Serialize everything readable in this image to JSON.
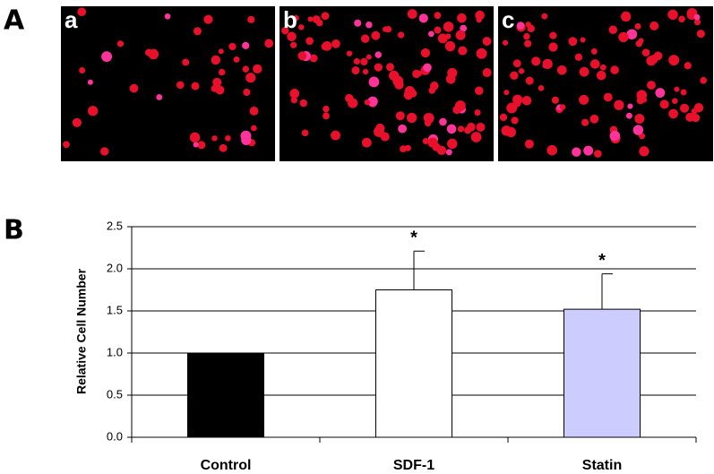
{
  "panel_labels": [
    "A",
    "B"
  ],
  "image_labels": [
    "a",
    "b",
    "c"
  ],
  "chart_data": {
    "type": "bar",
    "y_label": "Relative Cell Number",
    "categories": [
      "Control",
      "SDF-1",
      "Statin"
    ],
    "values": [
      1.0,
      1.75,
      1.52
    ],
    "errors": [
      null,
      0.46,
      0.42
    ],
    "annotations": [
      null,
      "*",
      "*"
    ],
    "colors": [
      "#000000",
      "#ffffff",
      "#ccccff"
    ],
    "ylim": [
      0,
      2.5
    ],
    "yticks": [
      {
        "value": 0,
        "label": "0.0"
      },
      {
        "value": 0.5,
        "label": "0.5"
      },
      {
        "value": 1,
        "label": "1.0"
      },
      {
        "value": 1.5,
        "label": "1.5"
      },
      {
        "value": 2,
        "label": "2.0"
      },
      {
        "value": 2.5,
        "label": "2.5"
      }
    ],
    "grid": true
  }
}
